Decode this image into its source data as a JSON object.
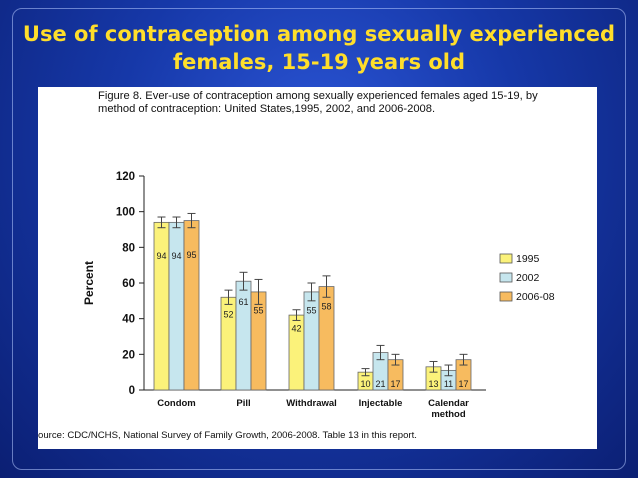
{
  "slide": {
    "title": "Use of contraception among sexually experienced females, 15-19 years old"
  },
  "figure": {
    "caption": "Figure 8. Ever-use of contraception among sexually experienced females aged 15-19, by method of contraception: United States,1995, 2002, and 2006-2008.",
    "source": "ource: CDC/NCHS, National Survey of Family Growth, 2006-2008. Table 13 in this report."
  },
  "colors": {
    "slide_background": "#1638a8",
    "title": "#ffde2b",
    "series": [
      "#fbf27a",
      "#c6e6ee",
      "#f7bb5f"
    ]
  },
  "chart_data": {
    "type": "bar",
    "title": "",
    "xlabel": "",
    "ylabel": "Percent",
    "ylim": [
      0,
      120
    ],
    "yticks": [
      0,
      20,
      40,
      60,
      80,
      100,
      120
    ],
    "grid": false,
    "legend_position": "right",
    "error_bars": true,
    "categories": [
      "Condom",
      "Pill",
      "Withdrawal",
      "Injectable",
      "Calendar method"
    ],
    "series": [
      {
        "name": "1995",
        "values": [
          94,
          52,
          42,
          10,
          13
        ],
        "error": [
          3,
          4,
          3,
          2,
          3
        ]
      },
      {
        "name": "2002",
        "values": [
          94,
          61,
          55,
          21,
          11
        ],
        "error": [
          3,
          5,
          5,
          4,
          3
        ]
      },
      {
        "name": "2006-08",
        "values": [
          95,
          55,
          58,
          17,
          17
        ],
        "error": [
          4,
          7,
          6,
          3,
          3
        ]
      }
    ]
  }
}
